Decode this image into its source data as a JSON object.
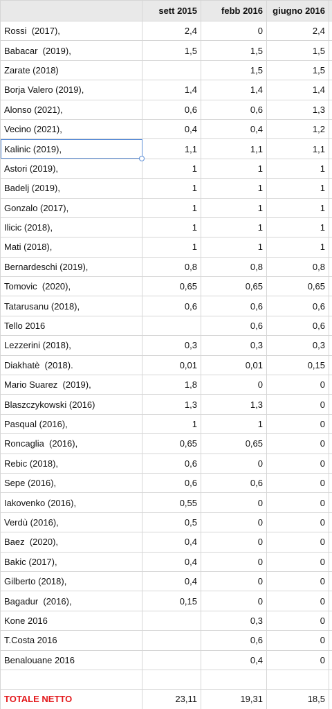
{
  "table": {
    "columns": [
      "sett 2015",
      "febb 2016",
      "giugno 2016"
    ],
    "rows": [
      [
        "Rossi  (2017),",
        "2,4",
        "0",
        "2,4"
      ],
      [
        "Babacar  (2019),",
        "1,5",
        "1,5",
        "1,5"
      ],
      [
        "Zarate (2018)",
        null,
        "1,5",
        "1,5"
      ],
      [
        "Borja Valero (2019),",
        "1,4",
        "1,4",
        "1,4"
      ],
      [
        "Alonso (2021),",
        "0,6",
        "0,6",
        "1,3"
      ],
      [
        "Vecino (2021),",
        "0,4",
        "0,4",
        "1,2"
      ],
      [
        "Kalinic (2019),",
        "1,1",
        "1,1",
        "1,1"
      ],
      [
        "Astori (2019),",
        "1",
        "1",
        "1"
      ],
      [
        "Badelj (2019),",
        "1",
        "1",
        "1"
      ],
      [
        "Gonzalo (2017),",
        "1",
        "1",
        "1"
      ],
      [
        "Ilicic (2018),",
        "1",
        "1",
        "1"
      ],
      [
        "Mati (2018),",
        "1",
        "1",
        "1"
      ],
      [
        "Bernardeschi (2019),",
        "0,8",
        "0,8",
        "0,8"
      ],
      [
        "Tomovic  (2020),",
        "0,65",
        "0,65",
        "0,65"
      ],
      [
        "Tatarusanu (2018),",
        "0,6",
        "0,6",
        "0,6"
      ],
      [
        "Tello 2016",
        null,
        "0,6",
        "0,6"
      ],
      [
        "Lezzerini (2018),",
        "0,3",
        "0,3",
        "0,3"
      ],
      [
        "Diakhatè  (2018).",
        "0,01",
        "0,01",
        "0,15"
      ],
      [
        "Mario Suarez  (2019),",
        "1,8",
        "0",
        "0"
      ],
      [
        "Blaszczykowski (2016)",
        "1,3",
        "1,3",
        "0"
      ],
      [
        "Pasqual (2016),",
        "1",
        "1",
        "0"
      ],
      [
        "Roncaglia  (2016),",
        "0,65",
        "0,65",
        "0"
      ],
      [
        "Rebic (2018),",
        "0,6",
        "0",
        "0"
      ],
      [
        "Sepe (2016),",
        "0,6",
        "0,6",
        "0"
      ],
      [
        "Iakovenko (2016),",
        "0,55",
        "0",
        "0"
      ],
      [
        "Verdù (2016),",
        "0,5",
        "0",
        "0"
      ],
      [
        "Baez  (2020),",
        "0,4",
        "0",
        "0"
      ],
      [
        "Bakic (2017),",
        "0,4",
        "0",
        "0"
      ],
      [
        "Gilberto (2018),",
        "0,4",
        "0",
        "0"
      ],
      [
        "Bagadur  (2016),",
        "0,15",
        "0",
        "0"
      ],
      [
        "Kone 2016",
        null,
        "0,3",
        "0"
      ],
      [
        "T.Costa 2016",
        null,
        "0,6",
        "0"
      ],
      [
        "Benalouane 2016",
        null,
        "0,4",
        "0"
      ],
      [
        null,
        null,
        null,
        null
      ]
    ],
    "total": [
      "TOTALE NETTO",
      "23,11",
      "19,31",
      "18,5"
    ]
  }
}
